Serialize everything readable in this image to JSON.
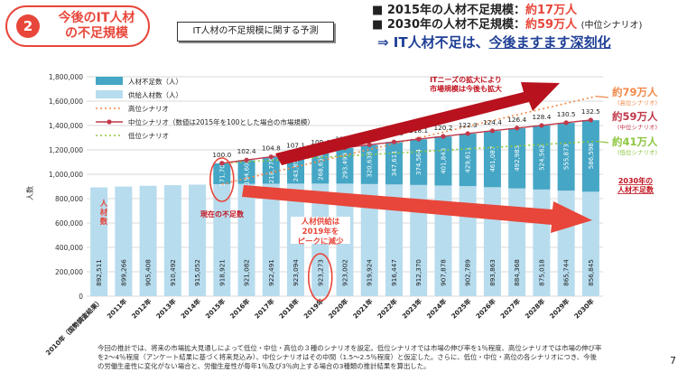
{
  "badge": {
    "number": "2",
    "line1": "今後のIT人材",
    "line2": "の不足規模"
  },
  "chart_title": "IT人材の不足規模に関する予測",
  "summary": {
    "bullet": "■",
    "line1_prefix": "2015年の人材不足規模：",
    "line1_value": "約17万人",
    "line2_prefix": "2030年の人材不足規模：",
    "line2_value": "約59万人",
    "line2_note": "(中位シナリオ)",
    "conclusion_a": "⇒ IT人材不足は、",
    "conclusion_b": "今後ますます深刻化"
  },
  "footnote": "今回の推計では、将来の市場拡大見通しによって低位・中位・高位の３種のシナリオを設定。低位シナリオでは市場の伸び率を1％程度、高位シナリオでは市場の伸び率を2～4％程度（アンケート結果に基づく将来見込み）、中位シナリオはその中間（1.5～2.5％程度）と仮定した。さらに、低位・中位・高位の各シナリオにつき、今後の労働生産性に変化がない場合と、労働生産性が毎年1％及び3％向上する場合の3種類の推計結果を算出した。",
  "page_number": "7",
  "annotations": {
    "demand_arrow": "ITニーズの拡大により\n市場規模は今後も拡大",
    "supply_peak": "人材供給は\n2019年を\nピークに減少",
    "current_shortage": "現在の不足数",
    "supply_label": "人\n材\n数",
    "high_result": "約79万人",
    "high_result_note": "(高位シナリオ)",
    "mid_result": "約59万人",
    "mid_result_note": "(中位シナリオ)",
    "low_result": "約41万人",
    "low_result_note": "(低位シナリオ)",
    "shortage_2030": "2030年の\n人材不足数"
  },
  "colors": {
    "supply": "#b7dcee",
    "shortage": "#45a6c5",
    "high": "#f08a4b",
    "mid": "#c0394b",
    "low": "#8dc63f",
    "accent_red": "#e8463a",
    "arrow_dark": "#b8121e"
  },
  "chart_data": {
    "type": "bar",
    "stacked": true,
    "categories": [
      "2010年（国勢調査結果）",
      "2011年",
      "2012年",
      "2013年",
      "2014年",
      "2015年",
      "2016年",
      "2017年",
      "2018年",
      "2019年",
      "2020年",
      "2021年",
      "2022年",
      "2023年",
      "2024年",
      "2025年",
      "2026年",
      "2027年",
      "2028年",
      "2029年",
      "2030年"
    ],
    "series": [
      {
        "name": "供給人材数（人）",
        "values": [
          892511,
          899266,
          905408,
          910492,
          915052,
          918921,
          921082,
          922491,
          923094,
          923273,
          923002,
          919924,
          916447,
          912370,
          907878,
          902789,
          893863,
          884368,
          875018,
          865744,
          856845
        ]
      },
      {
        "name": "人材不足数（人）",
        "values": [
          null,
          null,
          null,
          null,
          null,
          171700,
          194608,
          218776,
          243855,
          268655,
          293499,
          320638,
          347611,
          374564,
          401843,
          429611,
          461087,
          492983,
          524562,
          555873,
          586598
        ]
      }
    ],
    "lines": [
      {
        "name": "高位シナリオ",
        "style": "dotted",
        "start": 918921,
        "end_2030": 1640000
      },
      {
        "name": "中位シナリオ（数値は2015年を100とした場合の市場規模）",
        "style": "solid-marker",
        "index_values": [
          100.0,
          102.4,
          104.8,
          107.1,
          109.4,
          111.6,
          113.9,
          116.0,
          118.1,
          120.2,
          122.3,
          124.4,
          126.4,
          128.4,
          130.5,
          132.5
        ]
      },
      {
        "name": "低位シナリオ",
        "style": "dotted",
        "start": 1090621,
        "end_2030": 1270000
      }
    ],
    "ylabel": "人数",
    "ylim": [
      0,
      1800000
    ],
    "yticks": [
      "0",
      "200,000",
      "400,000",
      "600,000",
      "800,000",
      "1,000,000",
      "1,200,000",
      "1,400,000",
      "1,600,000",
      "1,800,000"
    ],
    "grid": true,
    "legend_position": "top-left"
  }
}
